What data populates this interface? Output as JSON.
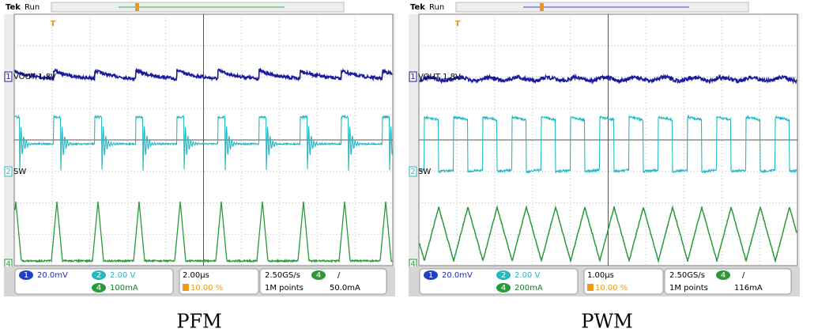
{
  "scopes": [
    {
      "brand": "Tek",
      "status": "Run",
      "channels": [
        {
          "number": "1",
          "label": "VOUT 1.8V",
          "scale": "20.0mV"
        },
        {
          "number": "2",
          "label": "SW",
          "scale": "2.00 V"
        },
        {
          "number": "4",
          "scale": "100mA"
        }
      ],
      "trigger_marker": "T",
      "timebase": "2.00µs",
      "sample_rate": "2.50GS/s",
      "record_length": "1M points",
      "trigger_position": "10.00 %",
      "trigger_channel": "4",
      "trigger_slope": "/",
      "trigger_level": "50.0mA",
      "caption": "PFM"
    },
    {
      "brand": "Tek",
      "status": "Run",
      "channels": [
        {
          "number": "1",
          "label": "VOUT 1.8V",
          "scale": "20.0mV"
        },
        {
          "number": "2",
          "label": "SW",
          "scale": "2.00 V"
        },
        {
          "number": "4",
          "scale": "200mA"
        }
      ],
      "trigger_marker": "T",
      "timebase": "1.00µs",
      "sample_rate": "2.50GS/s",
      "record_length": "1M points",
      "trigger_position": "10.00 %",
      "trigger_channel": "4",
      "trigger_slope": "/",
      "trigger_level": "116mA",
      "caption": "PWM"
    }
  ]
}
